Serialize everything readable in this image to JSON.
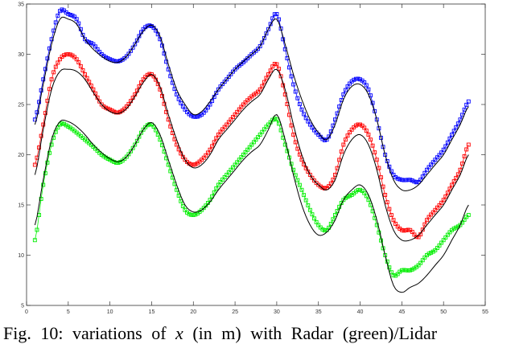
{
  "chart_data": {
    "type": "line",
    "title": "",
    "xlabel": "",
    "ylabel": "",
    "xlim": [
      0,
      55
    ],
    "ylim": [
      5,
      35
    ],
    "xticks": [
      0,
      5,
      10,
      15,
      20,
      25,
      30,
      35,
      40,
      45,
      50,
      55
    ],
    "yticks": [
      5,
      10,
      15,
      20,
      25,
      30,
      35
    ],
    "grid": false,
    "x": [
      1,
      2,
      3,
      4,
      5,
      6,
      7,
      8,
      9,
      10,
      11,
      12,
      13,
      14,
      15,
      16,
      17,
      18,
      19,
      20,
      21,
      22,
      23,
      24,
      25,
      26,
      27,
      28,
      29,
      30,
      31,
      32,
      33,
      34,
      35,
      36,
      37,
      38,
      39,
      40,
      41,
      42,
      43,
      44,
      45,
      46,
      47,
      48,
      49,
      50,
      51,
      52,
      53
    ],
    "series": [
      {
        "color": "#0000ff",
        "marker": "square",
        "values": [
          23.5,
          27.5,
          31.5,
          34.3,
          34,
          33.5,
          31.5,
          31,
          30,
          29.5,
          29.3,
          29.8,
          31,
          32.5,
          32.8,
          31.5,
          28.5,
          26,
          24.5,
          23.8,
          24,
          25,
          26.5,
          27.5,
          28.5,
          29.2,
          30,
          30.8,
          32.5,
          34,
          30.5,
          27,
          24.5,
          23,
          22,
          21.5,
          23.5,
          26,
          27.3,
          27.5,
          26.5,
          23.5,
          20,
          18,
          17.5,
          17.5,
          17.3,
          18.5,
          19.5,
          20.5,
          22,
          23.5,
          25.3
        ]
      },
      {
        "color": "#ff0000",
        "marker": "square",
        "values": [
          19,
          23,
          27.5,
          29.5,
          30,
          29.5,
          28,
          26.5,
          25,
          24.5,
          24.2,
          24.8,
          26,
          27.5,
          28,
          26.5,
          23.5,
          21,
          19.5,
          19,
          19.5,
          20.5,
          22,
          23,
          24,
          25,
          25.8,
          26.5,
          28,
          29,
          26,
          22,
          19.5,
          18,
          17,
          16.7,
          18,
          21,
          22.5,
          23,
          22,
          19.5,
          16,
          13.5,
          12.5,
          12.5,
          11.8,
          13.5,
          14.5,
          15.5,
          17,
          18.5,
          21
        ]
      },
      {
        "color": "#00ee00",
        "marker": "square",
        "values": [
          11.5,
          17,
          21,
          23,
          22.8,
          22.2,
          21.5,
          20.8,
          20,
          19.5,
          19.2,
          19.8,
          21,
          22.5,
          23,
          21.5,
          19,
          16.5,
          14.5,
          14,
          14.5,
          15.5,
          17,
          18,
          19,
          20,
          21,
          22,
          23,
          23.5,
          21,
          18.5,
          16.5,
          14.5,
          13,
          12.5,
          14,
          15.5,
          16,
          16.5,
          15.5,
          13,
          10,
          8,
          8.5,
          8.5,
          9,
          10,
          10.5,
          11.5,
          12.5,
          13,
          14
        ]
      },
      {
        "color": "#000000",
        "marker": "none",
        "values": [
          23,
          27,
          31,
          33.5,
          33.5,
          33,
          31.5,
          30.5,
          29.8,
          29.3,
          29.2,
          29.8,
          31,
          32.3,
          32.9,
          31.8,
          29,
          26.5,
          25,
          24,
          24.3,
          25.3,
          26.5,
          27.5,
          28.5,
          29.3,
          30,
          30.8,
          32.5,
          33.5,
          31,
          28,
          25.5,
          23.5,
          22.2,
          21.5,
          23,
          25.5,
          26.8,
          27,
          26,
          23.5,
          20,
          17.5,
          16.5,
          16.5,
          17,
          18,
          19,
          20,
          21.5,
          23,
          24.8
        ]
      },
      {
        "color": "#000000",
        "marker": "none",
        "values": [
          18,
          22.5,
          26.5,
          28.3,
          28.5,
          28.3,
          27.5,
          26.2,
          25,
          24.3,
          24.1,
          24.6,
          25.8,
          27.2,
          28,
          26.8,
          24,
          21.5,
          19.5,
          18.7,
          19,
          20,
          21.5,
          22.5,
          23.5,
          24.5,
          25.3,
          26,
          27.5,
          28.5,
          26.5,
          23,
          20,
          18,
          17,
          16.5,
          17.5,
          20,
          21.5,
          22,
          21,
          18.5,
          15,
          12.5,
          11.5,
          11.5,
          12,
          13,
          14,
          15,
          16.5,
          18,
          20
        ]
      },
      {
        "color": "#000000",
        "marker": "none",
        "values": [
          13,
          17.5,
          21.5,
          23.3,
          23.3,
          22.8,
          22,
          21,
          20.2,
          19.6,
          19.3,
          19.8,
          21,
          22.5,
          23.2,
          22,
          19.5,
          17,
          15,
          14.3,
          14.5,
          15.3,
          16.5,
          17.5,
          18.5,
          19.5,
          20.3,
          21,
          22.5,
          24,
          21.5,
          18,
          15,
          13,
          12,
          12.3,
          13.5,
          15.5,
          16.5,
          17,
          16,
          13.5,
          10,
          7,
          6.3,
          6.8,
          7.2,
          8,
          9,
          10,
          11.5,
          13,
          15
        ]
      }
    ]
  },
  "caption": {
    "prefix": "Fig. 10: variations of",
    "variable": "x",
    "suffix": "(in m) with Radar (green)/Lidar"
  }
}
